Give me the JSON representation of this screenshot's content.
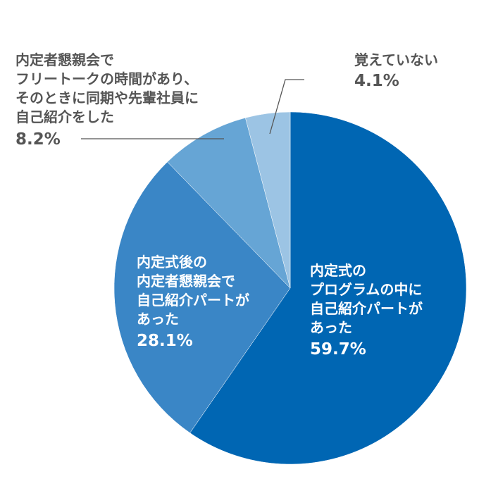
{
  "chart_data": {
    "type": "pie",
    "title": "",
    "start": "top",
    "direction": "clockwise",
    "slices": [
      {
        "label_lines": [
          "内定式の",
          "プログラムの中に",
          "自己紹介パートが",
          "あった"
        ],
        "value": 59.7,
        "value_label": "59.7%",
        "color": "#0066b3",
        "label_position": "inside"
      },
      {
        "label_lines": [
          "内定式後の",
          "内定者懇親会で",
          "自己紹介パートが",
          "あった"
        ],
        "value": 28.1,
        "value_label": "28.1%",
        "color": "#3a86c6",
        "label_position": "inside"
      },
      {
        "label_lines": [
          "内定者懇親会で",
          "フリートークの時間があり、",
          "そのときに同期や先輩社員に",
          "自己紹介をした"
        ],
        "value": 8.2,
        "value_label": "8.2%",
        "color": "#66a5d5",
        "label_position": "outside-left"
      },
      {
        "label_lines": [
          "覚えていない"
        ],
        "value": 4.1,
        "value_label": "4.1%",
        "color": "#9cc4e4",
        "label_position": "outside-top"
      }
    ]
  }
}
